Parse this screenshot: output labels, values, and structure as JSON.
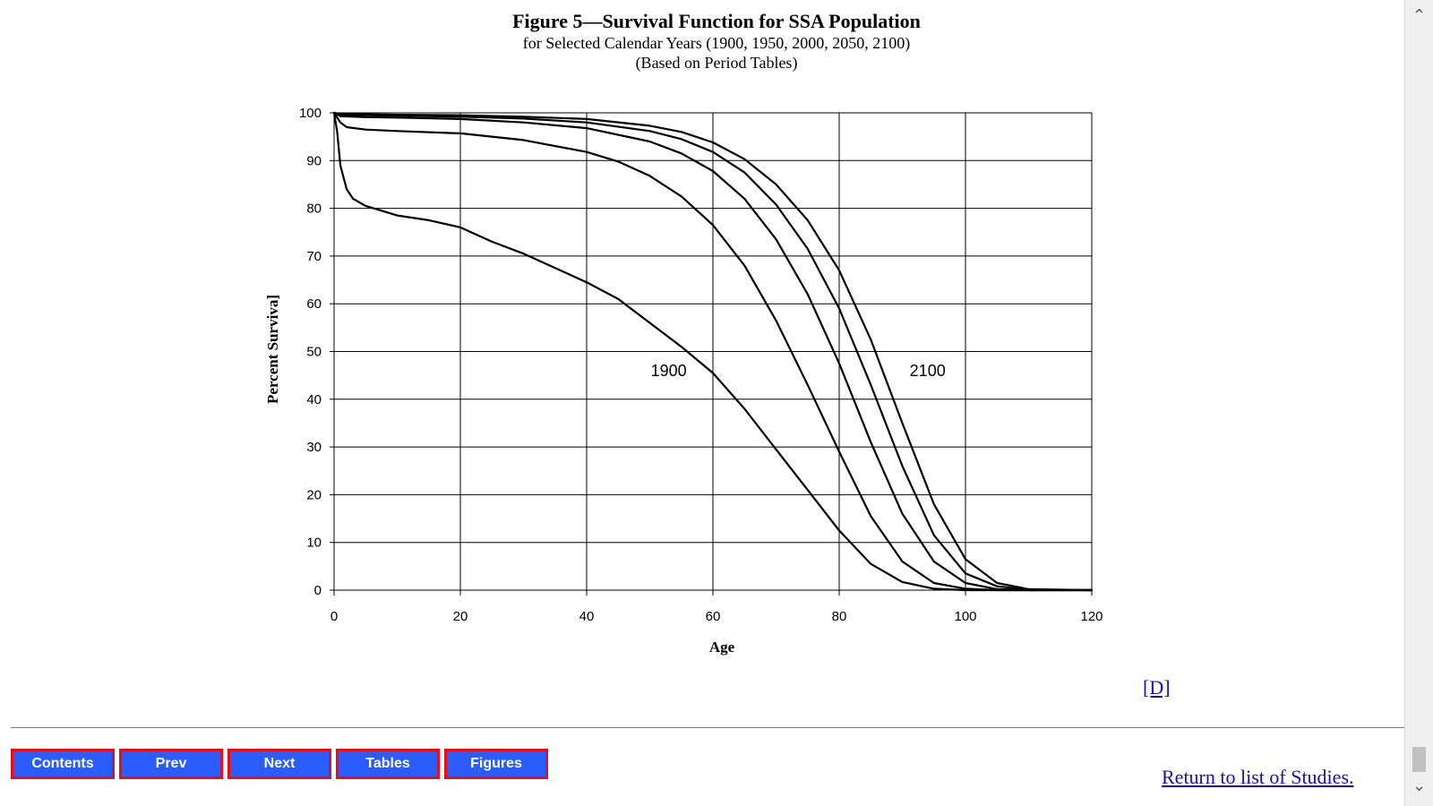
{
  "header": {
    "title": "Figure 5—Survival Function for SSA Population",
    "subtitle": "for Selected Calendar Years (1900, 1950, 2000, 2050, 2100)",
    "note": "(Based on Period Tables)"
  },
  "chart_data": {
    "type": "line",
    "xlabel": "Age",
    "ylabel": "Percent Surviva]",
    "xlim": [
      0,
      120
    ],
    "ylim": [
      0,
      100
    ],
    "xticks": [
      0,
      20,
      40,
      60,
      80,
      100,
      120
    ],
    "yticks": [
      0,
      10,
      20,
      30,
      40,
      50,
      60,
      70,
      80,
      90,
      100
    ],
    "grid": true,
    "line_color": "#000000",
    "annotations": [
      {
        "text": "1900",
        "x": 53,
        "y": 46
      },
      {
        "text": "2100",
        "x": 94,
        "y": 46
      }
    ],
    "series": [
      {
        "x": [
          0,
          0.5,
          1,
          2,
          3,
          5,
          10,
          15,
          20,
          25,
          30,
          40,
          45,
          50,
          55,
          60,
          65,
          70,
          75,
          80,
          85,
          90,
          95,
          100,
          105,
          110,
          120
        ],
        "values": [
          100,
          96,
          89,
          84,
          82,
          80.5,
          78.5,
          77.5,
          76,
          73,
          70.5,
          64.5,
          61,
          56,
          51,
          45.5,
          38,
          29.5,
          21,
          12.5,
          5.5,
          1.7,
          0.3,
          0,
          0,
          0,
          0
        ]
      },
      {
        "x": [
          0,
          1,
          2,
          5,
          10,
          20,
          30,
          40,
          45,
          50,
          55,
          60,
          65,
          70,
          75,
          80,
          85,
          90,
          95,
          100,
          105,
          110,
          120
        ],
        "values": [
          100,
          98,
          97,
          96.5,
          96.2,
          95.7,
          94.3,
          91.8,
          89.8,
          86.8,
          82.5,
          76.5,
          68,
          56.5,
          43,
          29,
          15.5,
          6,
          1.5,
          0.3,
          0,
          0,
          0
        ]
      },
      {
        "x": [
          0,
          1,
          5,
          10,
          20,
          30,
          40,
          50,
          55,
          60,
          65,
          70,
          75,
          80,
          85,
          90,
          95,
          100,
          105,
          110,
          120
        ],
        "values": [
          100,
          99.3,
          99.1,
          99,
          98.7,
          98,
          96.8,
          94,
          91.5,
          87.8,
          82,
          73.5,
          62,
          47.5,
          31,
          16,
          6,
          1.5,
          0.2,
          0,
          0
        ]
      },
      {
        "x": [
          0,
          1,
          5,
          10,
          20,
          30,
          40,
          50,
          55,
          60,
          65,
          70,
          75,
          80,
          85,
          90,
          95,
          100,
          105,
          110,
          120
        ],
        "values": [
          100,
          99.6,
          99.5,
          99.4,
          99.2,
          98.8,
          98,
          96.2,
          94.5,
          91.8,
          87.5,
          80.8,
          71.5,
          59,
          43,
          26,
          11.5,
          3.5,
          0.8,
          0.1,
          0
        ]
      },
      {
        "x": [
          0,
          1,
          5,
          10,
          20,
          30,
          40,
          50,
          55,
          60,
          65,
          70,
          75,
          80,
          85,
          90,
          95,
          100,
          105,
          110,
          120
        ],
        "values": [
          100,
          99.8,
          99.7,
          99.6,
          99.5,
          99.2,
          98.7,
          97.3,
          96,
          93.8,
          90.3,
          85,
          77.5,
          67,
          52.5,
          35,
          18,
          6.5,
          1.5,
          0.2,
          0
        ]
      }
    ]
  },
  "links": {
    "d_link": "[D]",
    "return": "Return to list of Studies."
  },
  "nav": {
    "contents": "Contents",
    "prev": "Prev",
    "next": "Next",
    "tables": "Tables",
    "figures": "Figures"
  },
  "icons": {
    "scroll_up": "chevron-up-icon",
    "scroll_down": "chevron-down-icon"
  }
}
